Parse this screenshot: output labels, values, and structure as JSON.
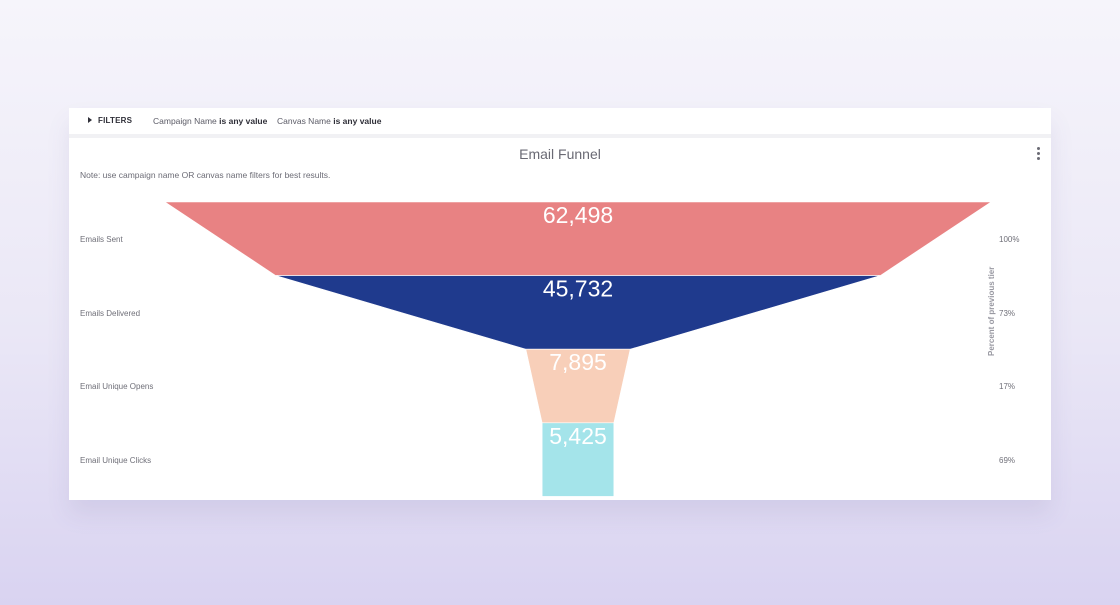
{
  "filters": {
    "toggle_label": "FILTERS",
    "items": [
      {
        "name": "Campaign Name",
        "condition": "is any value"
      },
      {
        "name": "Canvas Name",
        "condition": "is any value"
      }
    ]
  },
  "note": "Note: use campaign name OR canvas name filters for best results.",
  "colors": {
    "emails_sent": "#e88283",
    "emails_delivered": "#1f3a8d",
    "unique_opens": "#f8cfb9",
    "unique_clicks": "#a4e4ea"
  },
  "menu_icon": "kebab-menu-icon",
  "chart_data": {
    "type": "funnel",
    "title": "Email Funnel",
    "right_axis_label": "Percent of previous tier",
    "stages": [
      {
        "label": "Emails Sent",
        "value": 62498,
        "value_label": "62,498",
        "percent_label": "100%"
      },
      {
        "label": "Emails Delivered",
        "value": 45732,
        "value_label": "45,732",
        "percent_label": "73%"
      },
      {
        "label": "Email Unique Opens",
        "value": 7895,
        "value_label": "7,895",
        "percent_label": "17%"
      },
      {
        "label": "Email Unique Clicks",
        "value": 5425,
        "value_label": "5,425",
        "percent_label": "69%"
      }
    ]
  }
}
